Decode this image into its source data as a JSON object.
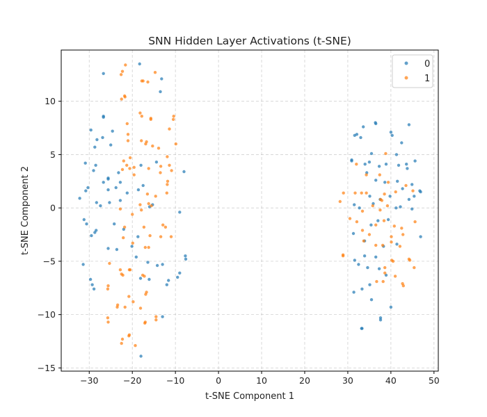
{
  "chart_data": {
    "type": "scatter",
    "title": "SNN Hidden Layer Activations (t-SNE)",
    "xlabel": "t-SNE Component 1",
    "ylabel": "t-SNE Component 2",
    "xlim": [
      -36.5,
      51
    ],
    "ylim": [
      -15.3,
      14.8
    ],
    "xticks": [
      -30,
      -20,
      -10,
      0,
      10,
      20,
      30,
      40,
      50
    ],
    "yticks": [
      -15,
      -10,
      -5,
      0,
      5,
      10
    ],
    "grid": true,
    "legend_position": "top-right",
    "series": [
      {
        "name": "0",
        "color": "#1f77b4",
        "points": [
          [
            -26.7,
            12.6
          ],
          [
            -18.3,
            13.5
          ],
          [
            -13.2,
            12.1
          ],
          [
            -13.5,
            10.9
          ],
          [
            -26.7,
            8.6
          ],
          [
            -26.7,
            8.5
          ],
          [
            -29.6,
            7.3
          ],
          [
            -28.7,
            5.7
          ],
          [
            -28.2,
            6.4
          ],
          [
            -26.9,
            6.6
          ],
          [
            -24.6,
            7.2
          ],
          [
            -25.0,
            5.9
          ],
          [
            -30.9,
            4.2
          ],
          [
            -29.0,
            3.5
          ],
          [
            -28.5,
            4.0
          ],
          [
            -26.7,
            2.4
          ],
          [
            -25.6,
            2.8
          ],
          [
            -25.6,
            2.7
          ],
          [
            -23.2,
            3.3
          ],
          [
            -22.8,
            2.4
          ],
          [
            -25.6,
            1.7
          ],
          [
            -23.8,
            1.9
          ],
          [
            -21.2,
            1.4
          ],
          [
            -18.6,
            1.7
          ],
          [
            -17.5,
            2.1
          ],
          [
            -30.3,
            1.9
          ],
          [
            -30.8,
            1.6
          ],
          [
            -32.2,
            0.9
          ],
          [
            -28.3,
            0.5
          ],
          [
            -27.4,
            0.2
          ],
          [
            -25.3,
            0.5
          ],
          [
            -22.8,
            0.7
          ],
          [
            -16.0,
            0.1
          ],
          [
            -15.3,
            0.3
          ],
          [
            -18.0,
            4.0
          ],
          [
            -14.4,
            4.3
          ],
          [
            -8.0,
            3.4
          ],
          [
            -9.0,
            -0.4
          ],
          [
            -31.2,
            -1.1
          ],
          [
            -30.6,
            -1.5
          ],
          [
            -28.4,
            -2.1
          ],
          [
            -28.7,
            -2.3
          ],
          [
            -29.5,
            -2.6
          ],
          [
            -24.2,
            -1.5
          ],
          [
            -22.0,
            -2.0
          ],
          [
            -18.7,
            -2.7
          ],
          [
            -20.1,
            -3.6
          ],
          [
            -25.6,
            -3.8
          ],
          [
            -23.6,
            -3.9
          ],
          [
            -19.1,
            -4.6
          ],
          [
            -7.7,
            -4.5
          ],
          [
            -7.6,
            -4.8
          ],
          [
            -31.4,
            -5.3
          ],
          [
            -16.4,
            -5.1
          ],
          [
            -14.2,
            -5.4
          ],
          [
            -13.0,
            -5.3
          ],
          [
            -29.7,
            -6.7
          ],
          [
            -29.3,
            -7.2
          ],
          [
            -28.9,
            -7.6
          ],
          [
            -18.1,
            -6.6
          ],
          [
            -16.1,
            -6.7
          ],
          [
            -11.6,
            -6.8
          ],
          [
            -9.0,
            -6.1
          ],
          [
            -9.5,
            -6.5
          ],
          [
            -12.0,
            -7.2
          ],
          [
            -13.0,
            -10.2
          ],
          [
            -18.0,
            -13.9
          ],
          [
            33.6,
            7.6
          ],
          [
            32.1,
            6.9
          ],
          [
            31.6,
            6.8
          ],
          [
            33.0,
            6.6
          ],
          [
            36.5,
            7.9
          ],
          [
            36.4,
            8.0
          ],
          [
            40.0,
            7.1
          ],
          [
            40.3,
            6.8
          ],
          [
            44.2,
            7.8
          ],
          [
            42.5,
            6.1
          ],
          [
            35.5,
            5.1
          ],
          [
            30.9,
            4.5
          ],
          [
            30.9,
            4.4
          ],
          [
            34.0,
            4.1
          ],
          [
            35.0,
            4.3
          ],
          [
            37.3,
            3.9
          ],
          [
            38.9,
            4.1
          ],
          [
            41.8,
            4.0
          ],
          [
            43.6,
            4.1
          ],
          [
            43.8,
            3.7
          ],
          [
            41.3,
            5.0
          ],
          [
            45.6,
            4.4
          ],
          [
            34.4,
            3.3
          ],
          [
            36.5,
            2.6
          ],
          [
            38.6,
            2.4
          ],
          [
            41.5,
            2.5
          ],
          [
            42.7,
            1.8
          ],
          [
            44.9,
            2.2
          ],
          [
            46.7,
            1.6
          ],
          [
            46.9,
            1.5
          ],
          [
            35.1,
            1.1
          ],
          [
            37.5,
            0.8
          ],
          [
            39.8,
            1.1
          ],
          [
            42.2,
            0.1
          ],
          [
            44.2,
            0.8
          ],
          [
            45.4,
            1.1
          ],
          [
            31.5,
            0.3
          ],
          [
            32.7,
            0.0
          ],
          [
            35.9,
            0.4
          ],
          [
            41.2,
            0.0
          ],
          [
            44.9,
            -0.1
          ],
          [
            35.4,
            -1.6
          ],
          [
            37.0,
            -1.2
          ],
          [
            39.4,
            -1.1
          ],
          [
            31.3,
            -2.4
          ],
          [
            33.9,
            -3.1
          ],
          [
            38.3,
            -3.6
          ],
          [
            41.4,
            -3.4
          ],
          [
            46.9,
            -2.7
          ],
          [
            31.6,
            -4.9
          ],
          [
            33.9,
            -4.5
          ],
          [
            36.5,
            -4.6
          ],
          [
            32.5,
            -5.3
          ],
          [
            34.6,
            -5.6
          ],
          [
            37.3,
            -5.7
          ],
          [
            38.9,
            -6.3
          ],
          [
            31.4,
            -7.9
          ],
          [
            33.3,
            -7.6
          ],
          [
            35.1,
            -7.2
          ],
          [
            35.5,
            -8.6
          ],
          [
            40.0,
            -9.3
          ],
          [
            37.6,
            -10.3
          ],
          [
            37.6,
            -10.5
          ],
          [
            33.3,
            -11.3
          ],
          [
            33.2,
            -11.3
          ]
        ]
      },
      {
        "name": "1",
        "color": "#ff7f0e",
        "points": [
          [
            -21.6,
            13.4
          ],
          [
            -22.3,
            12.8
          ],
          [
            -22.6,
            12.5
          ],
          [
            -14.7,
            12.7
          ],
          [
            -17.8,
            11.9
          ],
          [
            -17.5,
            11.9
          ],
          [
            -16.4,
            11.8
          ],
          [
            -21.8,
            10.5
          ],
          [
            -22.5,
            10.2
          ],
          [
            -21.7,
            10.4
          ],
          [
            -18.2,
            8.9
          ],
          [
            -17.8,
            8.6
          ],
          [
            -15.7,
            8.3
          ],
          [
            -15.7,
            8.4
          ],
          [
            -10.4,
            8.6
          ],
          [
            -10.5,
            8.3
          ],
          [
            -21.2,
            7.9
          ],
          [
            -21.0,
            6.9
          ],
          [
            -21.0,
            6.3
          ],
          [
            -17.9,
            6.3
          ],
          [
            -16.9,
            6.0
          ],
          [
            -16.7,
            6.2
          ],
          [
            -15.3,
            5.8
          ],
          [
            -13.9,
            5.6
          ],
          [
            -11.4,
            7.4
          ],
          [
            -9.9,
            6.0
          ],
          [
            -11.9,
            4.8
          ],
          [
            -22.0,
            4.4
          ],
          [
            -20.5,
            4.7
          ],
          [
            -22.3,
            3.6
          ],
          [
            -21.3,
            4.0
          ],
          [
            -20.6,
            3.7
          ],
          [
            -19.6,
            3.8
          ],
          [
            -16.2,
            3.7
          ],
          [
            -13.4,
            3.9
          ],
          [
            -11.4,
            4.0
          ],
          [
            -10.9,
            3.5
          ],
          [
            -13.5,
            3.3
          ],
          [
            -19.6,
            3.1
          ],
          [
            -11.8,
            2.5
          ],
          [
            -11.9,
            2.2
          ],
          [
            -12.0,
            1.4
          ],
          [
            -14.6,
            1.1
          ],
          [
            -16.5,
            1.3
          ],
          [
            -22.8,
            -0.1
          ],
          [
            -20.0,
            -0.6
          ],
          [
            -18.2,
            0.3
          ],
          [
            -17.9,
            -0.2
          ],
          [
            -16.2,
            0.4
          ],
          [
            -15.6,
            0.2
          ],
          [
            -21.8,
            -1.8
          ],
          [
            -17.3,
            -1.8
          ],
          [
            -12.3,
            -1.8
          ],
          [
            -12.9,
            -1.6
          ],
          [
            -15.9,
            -2.6
          ],
          [
            -13.4,
            -2.7
          ],
          [
            -11.0,
            -2.7
          ],
          [
            -22.1,
            -2.8
          ],
          [
            -19.9,
            -3.3
          ],
          [
            -17.0,
            -3.7
          ],
          [
            -16.2,
            -3.7
          ],
          [
            -25.3,
            -5.2
          ],
          [
            -22.8,
            -5.8
          ],
          [
            -22.5,
            -6.2
          ],
          [
            -22.2,
            -6.3
          ],
          [
            -20.7,
            -5.8
          ],
          [
            -20.5,
            -5.8
          ],
          [
            -17.6,
            -6.3
          ],
          [
            -17.2,
            -6.4
          ],
          [
            -25.6,
            -7.3
          ],
          [
            -25.7,
            -7.6
          ],
          [
            -20.8,
            -8.3
          ],
          [
            -16.7,
            -7.9
          ],
          [
            -16.9,
            -8.1
          ],
          [
            -23.4,
            -9.1
          ],
          [
            -23.5,
            -9.3
          ],
          [
            -21.7,
            -9.3
          ],
          [
            -19.8,
            -8.8
          ],
          [
            -18.1,
            -9.4
          ],
          [
            -14.5,
            -10.2
          ],
          [
            -25.7,
            -10.3
          ],
          [
            -25.6,
            -10.7
          ],
          [
            -14.5,
            -10.5
          ],
          [
            -17.1,
            -10.8
          ],
          [
            -17.0,
            -10.7
          ],
          [
            -20.7,
            -11.9
          ],
          [
            -20.8,
            -12.0
          ],
          [
            -22.3,
            -12.3
          ],
          [
            -22.5,
            -12.7
          ],
          [
            -19.3,
            -12.9
          ],
          [
            38.8,
            5.1
          ],
          [
            32.0,
            4.1
          ],
          [
            34.3,
            3.1
          ],
          [
            37.4,
            3.1
          ],
          [
            39.4,
            2.4
          ],
          [
            43.5,
            2.1
          ],
          [
            45.1,
            1.6
          ],
          [
            29.0,
            1.4
          ],
          [
            31.7,
            1.4
          ],
          [
            33.2,
            1.4
          ],
          [
            34.3,
            1.4
          ],
          [
            38.5,
            1.3
          ],
          [
            41.1,
            1.5
          ],
          [
            37.6,
            0.8
          ],
          [
            28.2,
            0.6
          ],
          [
            37.9,
            0.7
          ],
          [
            35.8,
            0.2
          ],
          [
            39.2,
            0.2
          ],
          [
            33.4,
            -0.3
          ],
          [
            37.5,
            -0.2
          ],
          [
            30.5,
            -1.0
          ],
          [
            32.1,
            -1.3
          ],
          [
            36.5,
            -1.6
          ],
          [
            38.4,
            -1.2
          ],
          [
            40.8,
            -1.7
          ],
          [
            42.5,
            -1.9
          ],
          [
            45.6,
            -1.3
          ],
          [
            33.4,
            -2.1
          ],
          [
            35.0,
            -2.5
          ],
          [
            42.8,
            -2.5
          ],
          [
            40.1,
            -2.7
          ],
          [
            33.7,
            -3.1
          ],
          [
            36.5,
            -3.5
          ],
          [
            38.1,
            -3.5
          ],
          [
            40.1,
            -3.2
          ],
          [
            42.1,
            -3.6
          ],
          [
            28.9,
            -4.4
          ],
          [
            28.9,
            -4.5
          ],
          [
            40.2,
            -4.9
          ],
          [
            40.5,
            -5.0
          ],
          [
            44.2,
            -4.8
          ],
          [
            44.4,
            -4.9
          ],
          [
            45.4,
            -5.6
          ],
          [
            38.6,
            -5.6
          ],
          [
            38.6,
            -6.1
          ],
          [
            41.0,
            -6.4
          ],
          [
            38.2,
            -6.9
          ],
          [
            36.7,
            -6.9
          ],
          [
            42.7,
            -7.1
          ],
          [
            42.9,
            -7.3
          ]
        ]
      }
    ]
  }
}
